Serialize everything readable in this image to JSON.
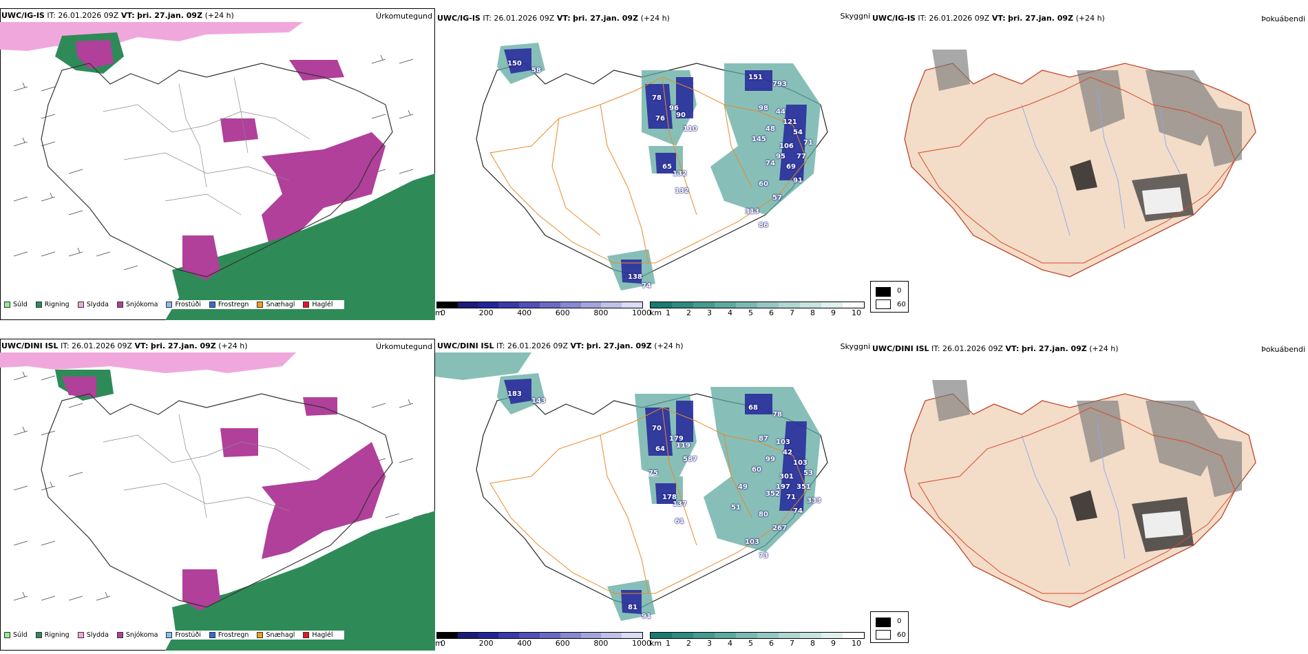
{
  "rows": [
    {
      "model": "UWC/IG-IS",
      "it_label": "IT:",
      "it_value": "26.01.2026 09Z",
      "vt_label": "VT:",
      "vt_value": "þri. 27.jan. 09Z",
      "lead": "(+24 h)",
      "precip_title": "Úrkomutegund",
      "vis_title": "Skyggni",
      "fog_title": "Þokuábendi",
      "vis_labels": [
        "150",
        "58",
        "78",
        "96",
        "76",
        "90",
        "110",
        "65",
        "132",
        "132",
        "151",
        "793",
        "98",
        "44",
        "121",
        "48",
        "145",
        "106",
        "95",
        "74",
        "69",
        "91",
        "60",
        "57",
        "313",
        "86",
        "138",
        "74",
        "54",
        "71",
        "77"
      ]
    },
    {
      "model": "UWC/DINI ISL",
      "it_label": "IT:",
      "it_value": "26.01.2026 09Z",
      "vt_label": "VT:",
      "vt_value": "þri. 27.jan. 09Z",
      "lead": "(+24 h)",
      "precip_title": "Úrkomutegund",
      "vis_title": "Skyggni",
      "fog_title": "Þokuábendi",
      "vis_labels": [
        "183",
        "143",
        "70",
        "179",
        "64",
        "119",
        "587",
        "178",
        "137",
        "61",
        "68",
        "78",
        "87",
        "103",
        "42",
        "99",
        "60",
        "301",
        "197",
        "352",
        "71",
        "74",
        "80",
        "267",
        "103",
        "73",
        "81",
        "91",
        "103",
        "53",
        "351",
        "333",
        "75",
        "49",
        "51"
      ]
    }
  ],
  "precip_legend": [
    {
      "label": "Súld",
      "color": "#90ee90"
    },
    {
      "label": "Rigning",
      "color": "#2e8b57"
    },
    {
      "label": "Slydda",
      "color": "#f0a8dc"
    },
    {
      "label": "Snjókoma",
      "color": "#b0409a"
    },
    {
      "label": "Frostúði",
      "color": "#87bdf0"
    },
    {
      "label": "Frostregn",
      "color": "#2f6fd0"
    },
    {
      "label": "Snæhagl",
      "color": "#f39c1f"
    },
    {
      "label": "Haglél",
      "color": "#e8161e"
    }
  ],
  "elevation_scale": {
    "unit": "m",
    "ticks": [
      "0",
      "200",
      "400",
      "600",
      "800",
      "1000"
    ],
    "colors": [
      "#000000",
      "#1c1c78",
      "#24249a",
      "#3a3aaa",
      "#5050b8",
      "#6a6ac4",
      "#8888d0",
      "#a4a4dc",
      "#c0c0e8",
      "#dcdcf4"
    ]
  },
  "visibility_scale": {
    "unit": "km",
    "ticks": [
      "1",
      "2",
      "3",
      "4",
      "5",
      "6",
      "7",
      "8",
      "9",
      "10"
    ],
    "colors": [
      "#1a7a70",
      "#2f8a80",
      "#479a90",
      "#5faaa0",
      "#7abab2",
      "#96c8c2",
      "#b0d6d2",
      "#c8e4e0",
      "#e0f0ee",
      "#ffffff"
    ]
  },
  "fog_scale": {
    "ticks": [
      "0",
      "60"
    ],
    "colors": [
      "#000000",
      "#ffffff"
    ]
  }
}
